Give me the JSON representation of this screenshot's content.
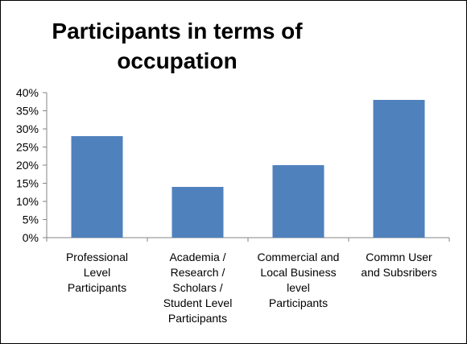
{
  "chart_data": {
    "type": "bar",
    "title_lines": [
      "Participants in terms of",
      "occupation"
    ],
    "categories": [
      [
        "Professional",
        "Level",
        "Participants"
      ],
      [
        "Academia /",
        "Research /",
        "Scholars /",
        "Student Level",
        "Participants"
      ],
      [
        "Commercial and",
        "Local Business",
        "level",
        "Participants"
      ],
      [
        "Commn User",
        "and Subsribers"
      ]
    ],
    "values": [
      28,
      14,
      20,
      38
    ],
    "yticks": [
      "0%",
      "5%",
      "10%",
      "15%",
      "20%",
      "25%",
      "30%",
      "35%",
      "40%"
    ],
    "ylim": [
      0,
      40
    ],
    "grid": false,
    "legend": "none",
    "bar_color": "#4F81BD",
    "axis_color": "#868686"
  }
}
